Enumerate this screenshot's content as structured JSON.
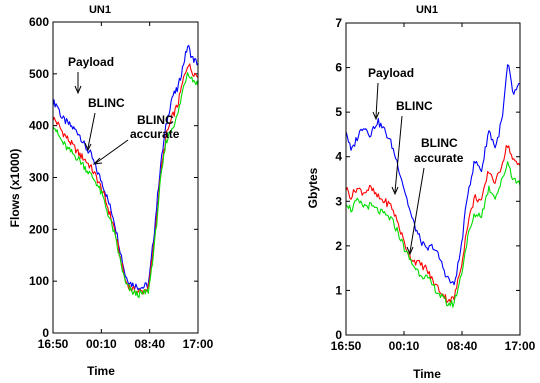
{
  "chart_data": [
    {
      "type": "line",
      "title": "UN1",
      "xlabel": "Time",
      "ylabel": "Flows (x1000)",
      "ylim": [
        0,
        600
      ],
      "yticks": [
        "0",
        "100",
        "200",
        "300",
        "400",
        "500",
        "600"
      ],
      "xticks": [
        "16:50",
        "00:10",
        "08:40",
        "17:00"
      ],
      "x": [
        0,
        0.03,
        0.06,
        0.1,
        0.14,
        0.18,
        0.22,
        0.26,
        0.3,
        0.34,
        0.38,
        0.42,
        0.46,
        0.5,
        0.54,
        0.58,
        0.62,
        0.66,
        0.7,
        0.74,
        0.78,
        0.82,
        0.86,
        0.9,
        0.93,
        0.96,
        1.0
      ],
      "series": [
        {
          "name": "Payload",
          "color": "#0000ff",
          "values": [
            445,
            440,
            415,
            405,
            395,
            385,
            360,
            345,
            315,
            290,
            255,
            220,
            165,
            110,
            95,
            90,
            88,
            95,
            200,
            320,
            400,
            455,
            470,
            520,
            555,
            530,
            520
          ]
        },
        {
          "name": "BLINC",
          "color": "#ff0000",
          "values": [
            415,
            405,
            390,
            375,
            360,
            345,
            335,
            320,
            300,
            275,
            240,
            205,
            150,
            100,
            85,
            80,
            80,
            88,
            180,
            300,
            380,
            415,
            440,
            490,
            520,
            505,
            495
          ]
        },
        {
          "name": "BLINC accurate",
          "color": "#00dd00",
          "values": [
            405,
            385,
            370,
            355,
            345,
            335,
            320,
            305,
            290,
            265,
            230,
            195,
            145,
            95,
            80,
            75,
            75,
            82,
            170,
            290,
            370,
            395,
            420,
            475,
            505,
            490,
            480
          ]
        }
      ],
      "annotations": [
        "Payload",
        "BLINC",
        "BLINC",
        "accurate"
      ]
    },
    {
      "type": "line",
      "title": "UN1",
      "xlabel": "Time",
      "ylabel": "Gbytes",
      "ylim": [
        0,
        7
      ],
      "yticks": [
        "0",
        "1",
        "2",
        "3",
        "4",
        "5",
        "6",
        "7"
      ],
      "xticks": [
        "16:50",
        "00:10",
        "08:40",
        "17:00"
      ],
      "x": [
        0,
        0.03,
        0.06,
        0.1,
        0.14,
        0.18,
        0.22,
        0.26,
        0.3,
        0.34,
        0.38,
        0.42,
        0.46,
        0.5,
        0.54,
        0.58,
        0.62,
        0.66,
        0.7,
        0.74,
        0.78,
        0.82,
        0.86,
        0.9,
        0.93,
        0.96,
        1.0
      ],
      "series": [
        {
          "name": "Payload",
          "color": "#0000ff",
          "values": [
            4.6,
            4.1,
            4.4,
            4.7,
            4.5,
            4.8,
            4.6,
            4.3,
            3.8,
            3.2,
            2.6,
            2.2,
            1.9,
            2.0,
            1.7,
            1.3,
            1.1,
            1.9,
            3.2,
            3.9,
            3.7,
            4.6,
            4.2,
            4.9,
            6.1,
            5.4,
            5.6
          ]
        },
        {
          "name": "BLINC",
          "color": "#ff0000",
          "values": [
            3.3,
            3.1,
            3.3,
            3.2,
            3.3,
            3.1,
            3.0,
            2.9,
            2.5,
            2.0,
            1.7,
            1.6,
            1.5,
            1.2,
            1.0,
            0.8,
            0.8,
            1.5,
            2.5,
            3.1,
            3.0,
            3.7,
            3.4,
            3.9,
            4.3,
            3.9,
            3.8
          ]
        },
        {
          "name": "BLINC accurate",
          "color": "#00dd00",
          "values": [
            3.0,
            2.8,
            3.0,
            2.9,
            2.9,
            2.8,
            2.7,
            2.6,
            2.3,
            1.9,
            1.6,
            1.4,
            1.3,
            1.1,
            0.9,
            0.7,
            0.7,
            1.3,
            2.2,
            2.7,
            2.7,
            3.3,
            3.1,
            3.5,
            3.9,
            3.5,
            3.4
          ]
        }
      ],
      "annotations": [
        "Payload",
        "BLINC",
        "BLINC",
        "accurate"
      ]
    }
  ]
}
